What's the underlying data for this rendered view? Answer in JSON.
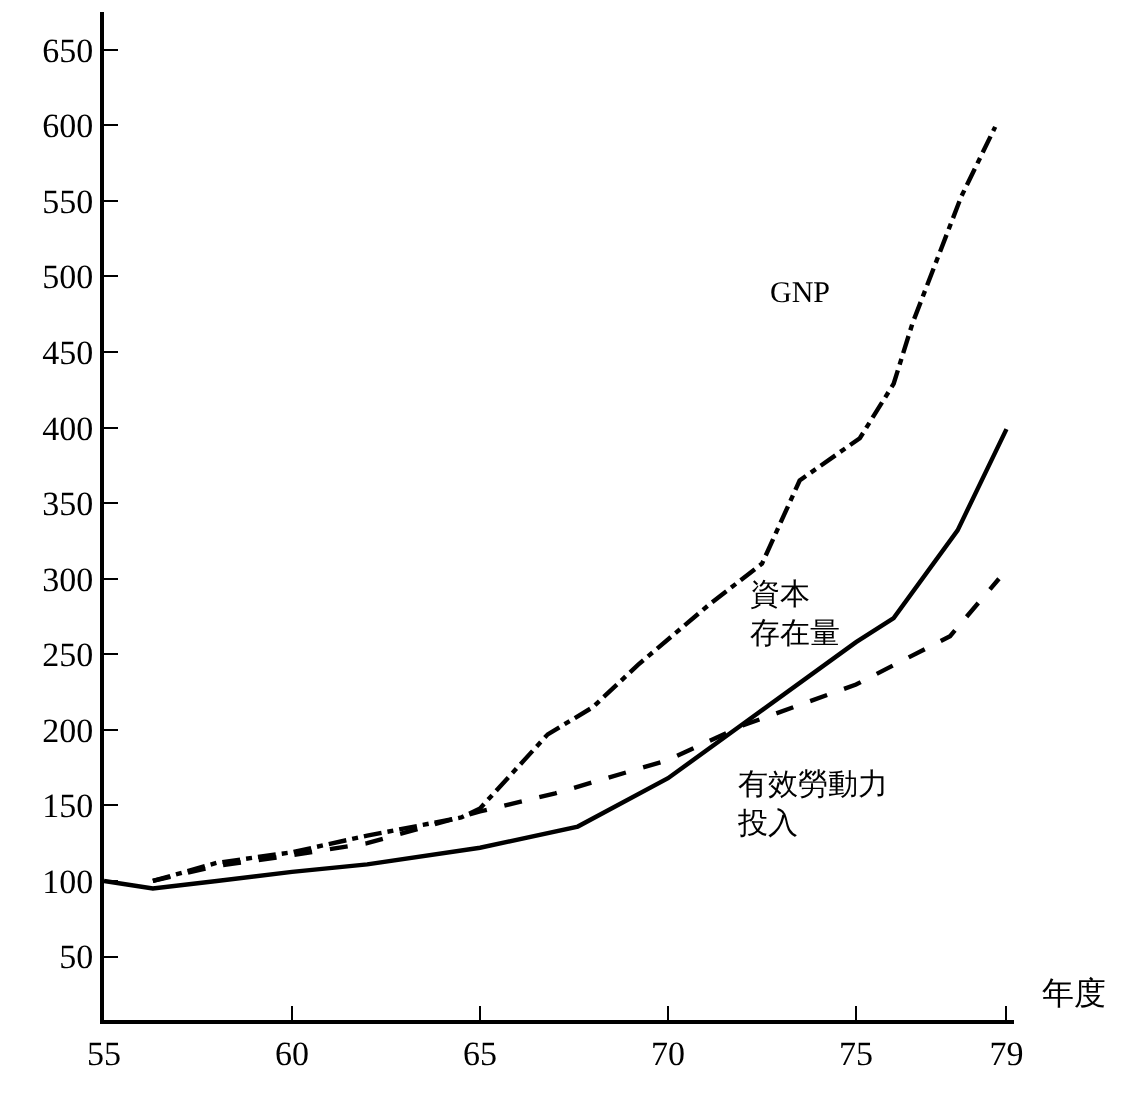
{
  "chart_data": {
    "type": "line",
    "xlabel": "年度",
    "xlim": [
      55,
      79.2
    ],
    "xticks": [
      55,
      60,
      65,
      70,
      75,
      79
    ],
    "ylim": [
      8,
      675
    ],
    "yticks": [
      50,
      100,
      150,
      200,
      250,
      300,
      350,
      400,
      450,
      500,
      550,
      600,
      650
    ],
    "legend": false,
    "marker": "none",
    "series": [
      {
        "name": "GNP",
        "color": "#000000",
        "line_style": "dashdot",
        "x": [
          56.3,
          58,
          60,
          62,
          64.5,
          65,
          66.8,
          68,
          69.2,
          71.1,
          72.5,
          73.5,
          75.1,
          76,
          76.5,
          77.8,
          78.7
        ],
        "values": [
          100,
          112,
          119,
          130,
          142,
          148,
          197,
          215,
          243,
          283,
          310,
          365,
          393,
          429,
          469,
          553,
          599
        ]
      },
      {
        "name": "資本存在量",
        "color": "#000000",
        "line_style": "solid",
        "x": [
          55,
          56.3,
          58,
          60,
          62,
          65,
          67.6,
          70,
          72,
          75,
          76,
          77.7,
          79
        ],
        "values": [
          100,
          95,
          100,
          106,
          111,
          122,
          136,
          168,
          204,
          258,
          274,
          332,
          399
        ]
      },
      {
        "name": "有效勞動力投入",
        "color": "#000000",
        "line_style": "dashed",
        "x": [
          56.3,
          58,
          60,
          62,
          65,
          67,
          70,
          72,
          75,
          77.5,
          78.8
        ],
        "values": [
          100,
          110,
          117,
          125,
          146,
          158,
          180,
          203,
          230,
          262,
          300
        ]
      }
    ]
  }
}
